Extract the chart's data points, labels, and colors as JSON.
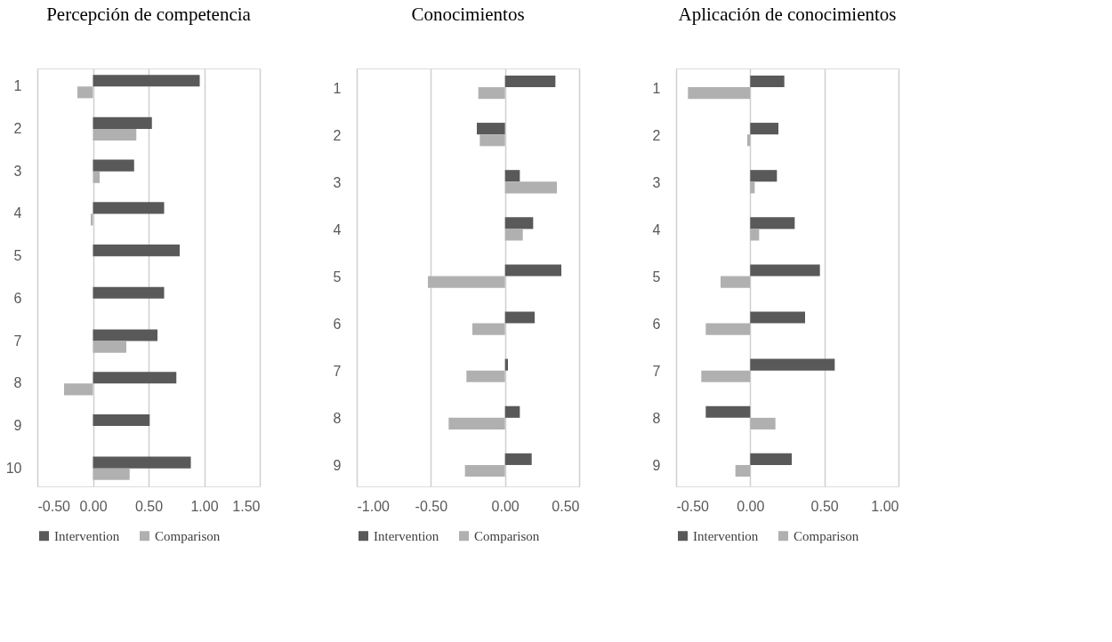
{
  "chart_data": [
    {
      "type": "bar",
      "orientation": "horizontal",
      "title": "Percepción de competencia",
      "categories": [
        "1",
        "2",
        "3",
        "4",
        "5",
        "6",
        "7",
        "8",
        "9",
        "10"
      ],
      "series": [
        {
          "name": "Intervention",
          "color": "#595959",
          "values": [
            0.96,
            0.53,
            0.37,
            0.64,
            0.78,
            0.64,
            0.58,
            0.75,
            0.51,
            0.88
          ]
        },
        {
          "name": "Comparison",
          "color": "#b0b0b0",
          "values": [
            -0.14,
            0.39,
            0.06,
            -0.02,
            null,
            0,
            0.3,
            -0.26,
            0,
            0.33
          ]
        }
      ],
      "xlim": [
        -0.5,
        1.5
      ],
      "xticks": [
        {
          "value": -0.5,
          "label": "-0.50"
        },
        {
          "value": 0,
          "label": "0.00"
        },
        {
          "value": 0.5,
          "label": "0.50"
        },
        {
          "value": 1,
          "label": "1.00"
        },
        {
          "value": 1.5,
          "label": "1.50"
        }
      ],
      "grid": "x",
      "legend": "bottom"
    },
    {
      "type": "bar",
      "orientation": "horizontal",
      "title": "Conocimientos",
      "categories": [
        "1",
        "2",
        "3",
        "4",
        "5",
        "6",
        "7",
        "8",
        "9"
      ],
      "series": [
        {
          "name": "Intervention",
          "color": "#595959",
          "values": [
            0.34,
            -0.19,
            0.1,
            0.19,
            0.38,
            0.2,
            0.02,
            0.1,
            0.18
          ]
        },
        {
          "name": "Comparison",
          "color": "#b0b0b0",
          "values": [
            -0.18,
            -0.17,
            0.35,
            0.12,
            -0.52,
            -0.22,
            -0.26,
            -0.38,
            -0.27
          ]
        }
      ],
      "xlim": [
        -1,
        0.5
      ],
      "xticks": [
        {
          "value": -1,
          "label": "-1.00"
        },
        {
          "value": -0.5,
          "label": "-0.50"
        },
        {
          "value": 0,
          "label": "0.00"
        },
        {
          "value": 0.5,
          "label": "0.50"
        }
      ],
      "grid": "x",
      "legend": "bottom"
    },
    {
      "type": "bar",
      "orientation": "horizontal",
      "title": "Aplicación de conocimientos",
      "categories": [
        "1",
        "2",
        "3",
        "4",
        "5",
        "6",
        "7",
        "8",
        "9"
      ],
      "series": [
        {
          "name": "Intervention",
          "color": "#595959",
          "values": [
            0.23,
            0.19,
            0.18,
            0.3,
            0.47,
            0.37,
            0.57,
            -0.3,
            0.28
          ]
        },
        {
          "name": "Comparison",
          "color": "#b0b0b0",
          "values": [
            -0.42,
            -0.02,
            0.03,
            0.06,
            -0.2,
            -0.3,
            -0.33,
            0.17,
            -0.1
          ]
        }
      ],
      "xlim": [
        -0.5,
        1
      ],
      "xticks": [
        {
          "value": -0.5,
          "label": "-0.50"
        },
        {
          "value": 0,
          "label": "0.00"
        },
        {
          "value": 0.5,
          "label": "0.50"
        },
        {
          "value": 1,
          "label": "1.00"
        }
      ],
      "grid": "x",
      "legend": "bottom"
    }
  ]
}
